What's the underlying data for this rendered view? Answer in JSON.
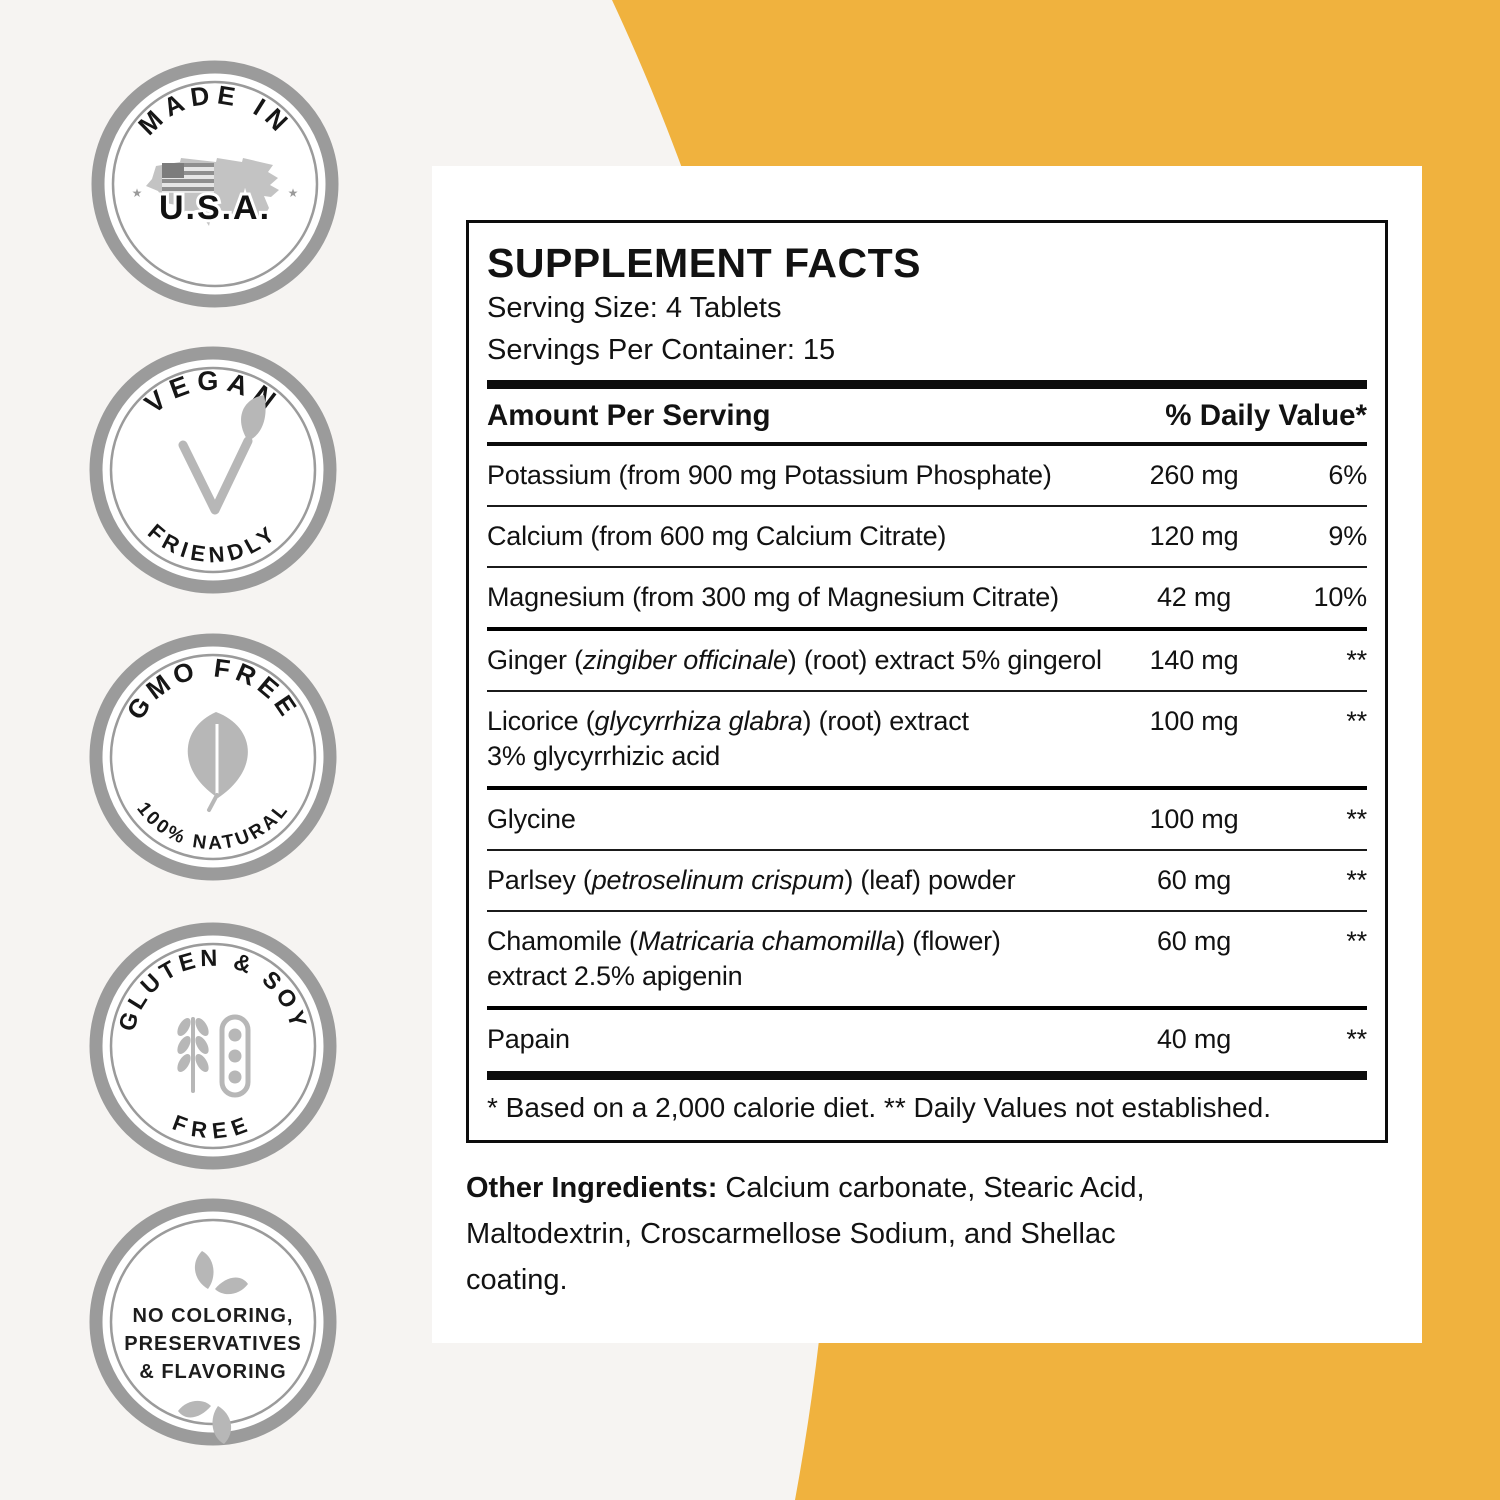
{
  "badges": [
    {
      "top": "MADE IN",
      "center": "U.S.A."
    },
    {
      "top": "VEGAN",
      "bottom": "FRIENDLY"
    },
    {
      "top": "GMO FREE",
      "bottom": "100% NATURAL"
    },
    {
      "top": "GLUTEN & SOY",
      "bottom": "FREE"
    },
    {
      "line1": "NO COLORING,",
      "line2": "PRESERVATIVES",
      "line3": "& FLAVORING"
    }
  ],
  "facts": {
    "title": "SUPPLEMENT FACTS",
    "serving_size": "Serving Size: 4 Tablets",
    "servings_per_container": "Servings Per Container: 15",
    "header": {
      "left": "Amount Per Serving",
      "right": "% Daily Value*"
    },
    "rows": [
      {
        "name": [
          {
            "t": "Potassium (from 900 mg Potassium Phosphate)"
          }
        ],
        "amount": "260 mg",
        "dv": "6%",
        "sep": "none"
      },
      {
        "name": [
          {
            "t": "Calcium (from 600 mg Calcium Citrate)"
          }
        ],
        "amount": "120 mg",
        "dv": "9%",
        "sep": "thin"
      },
      {
        "name": [
          {
            "t": "Magnesium (from 300 mg of Magnesium Citrate)"
          }
        ],
        "amount": "42 mg",
        "dv": "10%",
        "sep": "thin"
      },
      {
        "name": [
          {
            "t": "Ginger ("
          },
          {
            "t": "zingiber officinale",
            "i": true
          },
          {
            "t": ") (root) extract 5% gingerol"
          }
        ],
        "amount": "140 mg",
        "dv": "**",
        "sep": "medium"
      },
      {
        "name": [
          {
            "t": "Licorice ("
          },
          {
            "t": "glycyrrhiza glabra",
            "i": true
          },
          {
            "t": ") (root) extract\n3% glycyrrhizic acid"
          }
        ],
        "amount": "100 mg",
        "dv": "**",
        "sep": "thin"
      },
      {
        "name": [
          {
            "t": "Glycine"
          }
        ],
        "amount": "100 mg",
        "dv": "**",
        "sep": "medium"
      },
      {
        "name": [
          {
            "t": "Parlsey ("
          },
          {
            "t": "petroselinum crispum",
            "i": true
          },
          {
            "t": ") (leaf) powder"
          }
        ],
        "amount": "60 mg",
        "dv": "**",
        "sep": "thin"
      },
      {
        "name": [
          {
            "t": "Chamomile ("
          },
          {
            "t": "Matricaria chamomilla",
            "i": true
          },
          {
            "t": ") (flower)\nextract 2.5% apigenin"
          }
        ],
        "amount": "60 mg",
        "dv": "**",
        "sep": "thin"
      },
      {
        "name": [
          {
            "t": "Papain"
          }
        ],
        "amount": "40 mg",
        "dv": "**",
        "sep": "medium"
      }
    ],
    "footnote": "* Based on a 2,000 calorie diet. ** Daily Values not established."
  },
  "other_ingredients": {
    "label": "Other Ingredients:",
    "line1": "Calcium carbonate, Stearic Acid,",
    "line2": "Maltodextrin, Croscarmellose Sodium, and Shellac",
    "line3": "coating."
  },
  "colors": {
    "accent_yellow": "#F0B23E",
    "badge_ring_gray": "#9B9B9B",
    "icon_gray": "#B7B7B7"
  }
}
